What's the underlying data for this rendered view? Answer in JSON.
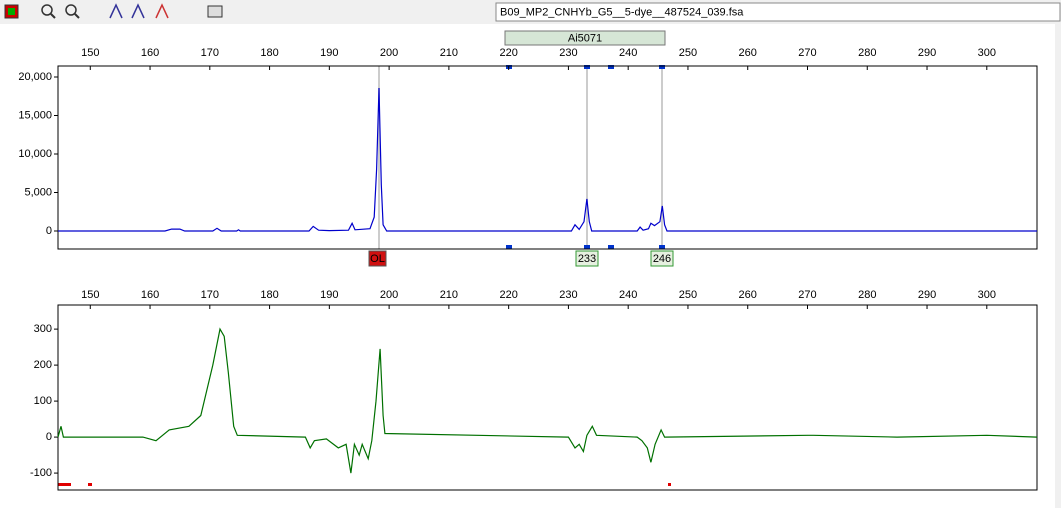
{
  "toolbar": {
    "file_name": "B09_MP2_CNHYb_G5__5-dye__487524_039.fsa"
  },
  "chart_data": [
    {
      "type": "line",
      "marker_label": "Ai5071",
      "allele_labels": [
        "OL",
        "233",
        "246"
      ],
      "color": "#0000cc",
      "x": [
        144.6,
        162.5,
        163.6,
        165.0,
        165.8,
        170.5,
        171.2,
        171.9,
        174.5,
        174.8,
        175.1,
        186.6,
        187.3,
        188.2,
        190,
        193.2,
        193.8,
        194.3,
        196.8,
        197.5,
        197.9,
        198.3,
        198.7,
        199.0,
        199.6,
        230.5,
        231.1,
        231.8,
        232.6,
        233.1,
        233.5,
        233.9,
        241.5,
        242.0,
        242.5,
        243.4,
        243.8,
        244.4,
        245.3,
        245.7,
        246.1,
        246.5,
        308.4
      ],
      "values": [
        0,
        0,
        250,
        250,
        0,
        0,
        350,
        0,
        0,
        150,
        0,
        0,
        600,
        100,
        50,
        100,
        1000,
        150,
        300,
        1800,
        8000,
        18570,
        6000,
        800,
        0,
        0,
        800,
        200,
        1200,
        4150,
        1200,
        0,
        0,
        500,
        100,
        300,
        1000,
        700,
        1200,
        3250,
        800,
        0,
        0
      ],
      "xlim": [
        144.6,
        308.4
      ],
      "xticks": [
        150,
        160,
        170,
        180,
        190,
        200,
        210,
        220,
        230,
        240,
        250,
        260,
        270,
        280,
        290,
        300
      ],
      "ylim": [
        -2340,
        21430
      ],
      "yticks": [
        0,
        {
          "value": 5000,
          "label": "5,000"
        },
        {
          "value": 10000,
          "label": "10,000"
        },
        {
          "value": 15000,
          "label": "15,000"
        },
        {
          "value": 20000,
          "label": "20,000"
        }
      ]
    },
    {
      "type": "line",
      "color": "#007000",
      "x": [
        144.6,
        145.1,
        145.5,
        158.8,
        161.0,
        163.2,
        166.5,
        168.5,
        170.5,
        171.7,
        172.4,
        173.1,
        174.0,
        174.6,
        186.0,
        186.8,
        187.5,
        189.5,
        191.5,
        192.8,
        193.6,
        194.2,
        195.0,
        195.5,
        196.5,
        197.1,
        197.8,
        198.5,
        199.0,
        199.3,
        230,
        231.1,
        231.8,
        232.5,
        233.1,
        234.0,
        234.7,
        241.5,
        242.3,
        243.2,
        243.8,
        244.5,
        245.5,
        246.1,
        270,
        271.0,
        285,
        300,
        308.4
      ],
      "values": [
        0,
        30,
        0,
        0,
        -10,
        20,
        30,
        60,
        200,
        300,
        280,
        180,
        30,
        5,
        0,
        -30,
        -10,
        -5,
        -30,
        -20,
        -100,
        -20,
        -50,
        -20,
        -60,
        -10,
        100,
        245,
        60,
        10,
        0,
        -30,
        -20,
        -40,
        5,
        30,
        5,
        0,
        -10,
        -30,
        -70,
        -20,
        20,
        0,
        5,
        5,
        0,
        5,
        0
      ],
      "xlim": [
        144.6,
        308.4
      ],
      "xticks": [
        150,
        160,
        170,
        180,
        190,
        200,
        210,
        220,
        230,
        240,
        250,
        260,
        270,
        280,
        290,
        300
      ],
      "ylim": [
        -147,
        367
      ],
      "yticks": [
        -100,
        0,
        100,
        200,
        300
      ]
    }
  ]
}
